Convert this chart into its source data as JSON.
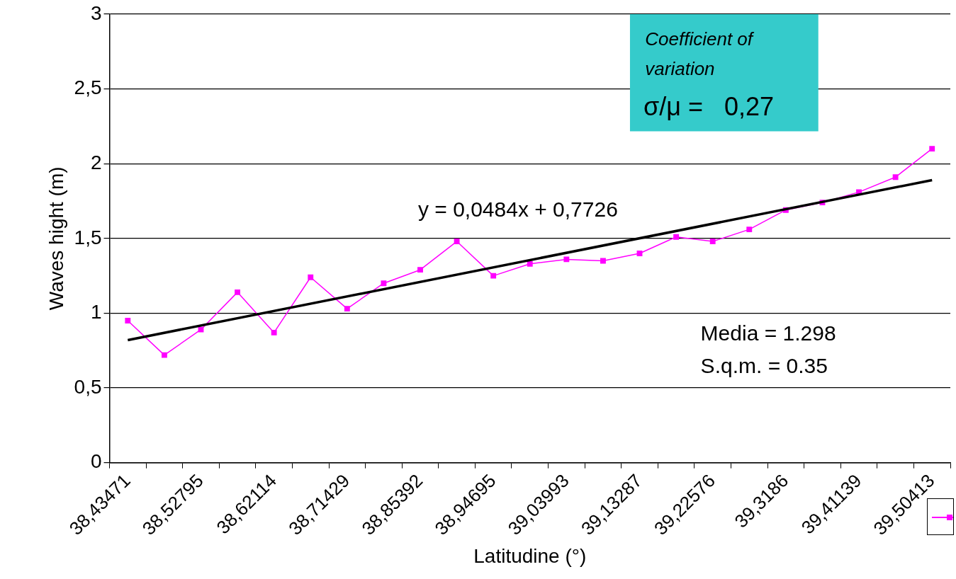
{
  "chart_data": {
    "type": "line",
    "xlabel": "Latitudine (°)",
    "ylabel": "Waves hight (m)",
    "categories": [
      "38,43471",
      null,
      "38,52795",
      null,
      "38,62114",
      null,
      "38,71429",
      null,
      "38,85392",
      null,
      "38,94695",
      null,
      "39,03993",
      null,
      "39,13287",
      null,
      "39,22576",
      null,
      "39,3186",
      null,
      "39,41139",
      null,
      "39,50413"
    ],
    "series": [
      {
        "color": "#ff00ff",
        "marker": "square",
        "values": [
          0.95,
          0.72,
          0.89,
          1.14,
          0.87,
          1.24,
          1.03,
          1.2,
          1.29,
          1.48,
          1.25,
          1.33,
          1.36,
          1.35,
          1.4,
          1.51,
          1.48,
          1.56,
          1.69,
          1.74,
          1.81,
          1.91,
          2.1
        ]
      },
      {
        "type": "line",
        "color": "#000000",
        "marker": "none",
        "values": [
          0.82,
          null,
          null,
          null,
          null,
          null,
          null,
          null,
          null,
          null,
          null,
          null,
          null,
          null,
          null,
          null,
          null,
          null,
          null,
          null,
          null,
          null,
          1.89
        ]
      }
    ],
    "ylim": [
      0,
      3
    ],
    "yticks": [
      {
        "value": 0,
        "label": "0"
      },
      {
        "value": 0.5,
        "label": "0,5"
      },
      {
        "value": 1,
        "label": "1"
      },
      {
        "value": 1.5,
        "label": "1,5"
      },
      {
        "value": 2,
        "label": "2"
      },
      {
        "value": 2.5,
        "label": "2,5"
      },
      {
        "value": 3,
        "label": "3"
      }
    ],
    "grid": "y",
    "annotations": [
      "Coefficient of variation",
      "σ/μ =   0,27",
      "y = 0,0484x + 0,7726",
      "Media = 1.298",
      "S.q.m. = 0.35"
    ]
  }
}
